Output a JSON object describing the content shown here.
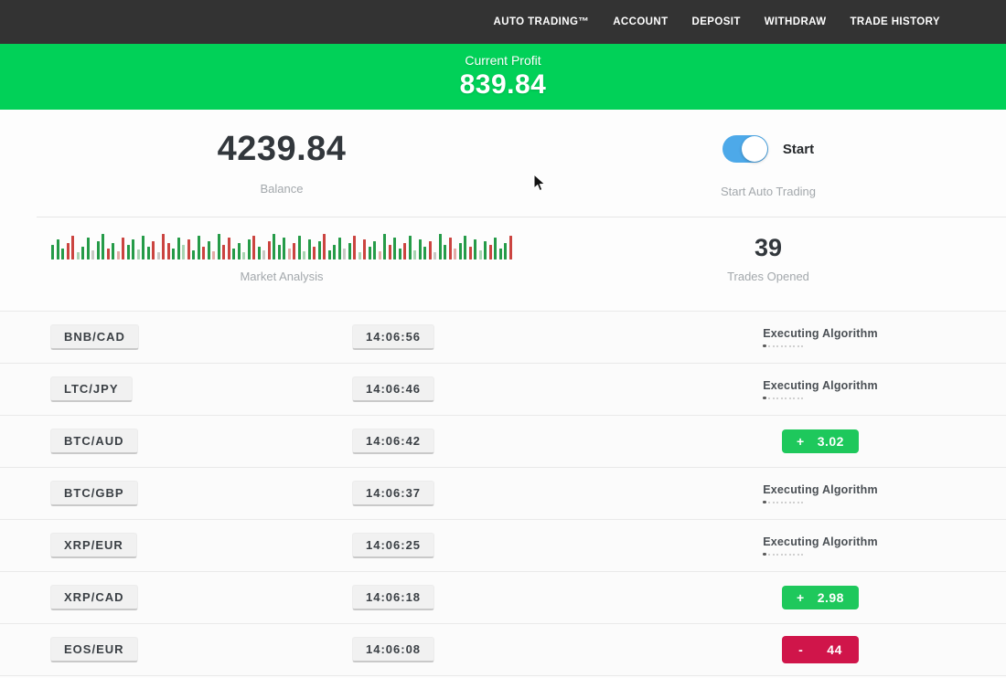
{
  "nav": {
    "items": [
      {
        "label": "AUTO TRADING™"
      },
      {
        "label": "ACCOUNT"
      },
      {
        "label": "DEPOSIT"
      },
      {
        "label": "WITHDRAW"
      },
      {
        "label": "TRADE HISTORY"
      }
    ]
  },
  "banner": {
    "label": "Current Profit",
    "value": "839.84"
  },
  "stats": {
    "balance": {
      "value": "4239.84",
      "label": "Balance"
    },
    "auto_trading": {
      "toggle_label": "Start",
      "label": "Start Auto Trading",
      "toggle_on": true
    },
    "market": {
      "label": "Market Analysis"
    },
    "trades": {
      "value": "39",
      "label": "Trades Opened"
    }
  },
  "chart_data": {
    "type": "bar",
    "title": "Market Analysis",
    "description": "decorative mini candlestick-style bar strip, green/red bars of varying height",
    "colors": {
      "g": "#259b48",
      "r": "#cb4440",
      "lg": "#a8d4b2",
      "lr": "#e4aaa6",
      "gr": "#c8c8c4"
    },
    "bars": [
      [
        16,
        "g"
      ],
      [
        22,
        "g"
      ],
      [
        12,
        "g"
      ],
      [
        18,
        "r"
      ],
      [
        26,
        "r"
      ],
      [
        8,
        "lg"
      ],
      [
        14,
        "g"
      ],
      [
        24,
        "g"
      ],
      [
        10,
        "gr"
      ],
      [
        20,
        "g"
      ],
      [
        28,
        "g"
      ],
      [
        12,
        "r"
      ],
      [
        18,
        "g"
      ],
      [
        9,
        "lr"
      ],
      [
        24,
        "r"
      ],
      [
        16,
        "g"
      ],
      [
        22,
        "g"
      ],
      [
        11,
        "lg"
      ],
      [
        26,
        "g"
      ],
      [
        14,
        "g"
      ],
      [
        20,
        "r"
      ],
      [
        8,
        "gr"
      ],
      [
        28,
        "r"
      ],
      [
        18,
        "r"
      ],
      [
        12,
        "g"
      ],
      [
        24,
        "g"
      ],
      [
        16,
        "lg"
      ],
      [
        22,
        "r"
      ],
      [
        10,
        "g"
      ],
      [
        26,
        "g"
      ],
      [
        14,
        "r"
      ],
      [
        20,
        "g"
      ],
      [
        9,
        "lr"
      ],
      [
        28,
        "g"
      ],
      [
        16,
        "r"
      ],
      [
        24,
        "r"
      ],
      [
        12,
        "g"
      ],
      [
        18,
        "g"
      ],
      [
        8,
        "lg"
      ],
      [
        22,
        "g"
      ],
      [
        26,
        "r"
      ],
      [
        14,
        "g"
      ],
      [
        10,
        "gr"
      ],
      [
        20,
        "r"
      ],
      [
        28,
        "g"
      ],
      [
        16,
        "g"
      ],
      [
        24,
        "g"
      ],
      [
        12,
        "lr"
      ],
      [
        18,
        "r"
      ],
      [
        26,
        "g"
      ],
      [
        9,
        "lg"
      ],
      [
        22,
        "g"
      ],
      [
        14,
        "r"
      ],
      [
        20,
        "g"
      ],
      [
        28,
        "r"
      ],
      [
        10,
        "g"
      ],
      [
        16,
        "g"
      ],
      [
        24,
        "g"
      ],
      [
        12,
        "gr"
      ],
      [
        18,
        "g"
      ],
      [
        26,
        "r"
      ],
      [
        8,
        "lg"
      ],
      [
        22,
        "r"
      ],
      [
        14,
        "g"
      ],
      [
        20,
        "g"
      ],
      [
        9,
        "lr"
      ],
      [
        28,
        "g"
      ],
      [
        16,
        "r"
      ],
      [
        24,
        "g"
      ],
      [
        12,
        "g"
      ],
      [
        18,
        "r"
      ],
      [
        26,
        "g"
      ],
      [
        10,
        "lg"
      ],
      [
        22,
        "g"
      ],
      [
        14,
        "g"
      ],
      [
        20,
        "r"
      ],
      [
        8,
        "gr"
      ],
      [
        28,
        "g"
      ],
      [
        16,
        "g"
      ],
      [
        24,
        "r"
      ],
      [
        12,
        "lr"
      ],
      [
        18,
        "g"
      ],
      [
        26,
        "g"
      ],
      [
        14,
        "r"
      ],
      [
        22,
        "g"
      ],
      [
        10,
        "lg"
      ],
      [
        20,
        "g"
      ],
      [
        16,
        "r"
      ],
      [
        24,
        "g"
      ],
      [
        12,
        "g"
      ],
      [
        18,
        "g"
      ],
      [
        26,
        "r"
      ]
    ]
  },
  "rows": [
    {
      "pair": "BNB/CAD",
      "time": "14:06:56",
      "status": {
        "type": "executing",
        "label": "Executing Algorithm"
      }
    },
    {
      "pair": "LTC/JPY",
      "time": "14:06:46",
      "status": {
        "type": "executing",
        "label": "Executing Algorithm"
      }
    },
    {
      "pair": "BTC/AUD",
      "time": "14:06:42",
      "status": {
        "type": "profit",
        "sign": "+",
        "value": "3.02"
      }
    },
    {
      "pair": "BTC/GBP",
      "time": "14:06:37",
      "status": {
        "type": "executing",
        "label": "Executing Algorithm"
      }
    },
    {
      "pair": "XRP/EUR",
      "time": "14:06:25",
      "status": {
        "type": "executing",
        "label": "Executing Algorithm"
      }
    },
    {
      "pair": "XRP/CAD",
      "time": "14:06:18",
      "status": {
        "type": "profit",
        "sign": "+",
        "value": "2.98"
      }
    },
    {
      "pair": "EOS/EUR",
      "time": "14:06:08",
      "status": {
        "type": "loss",
        "sign": "-",
        "value": "44"
      }
    }
  ],
  "colors": {
    "nav_bg": "#333333",
    "banner_bg": "#01d158",
    "profit_badge": "#1ec85c",
    "loss_badge": "#d0154a",
    "toggle_on": "#4da9e9"
  }
}
